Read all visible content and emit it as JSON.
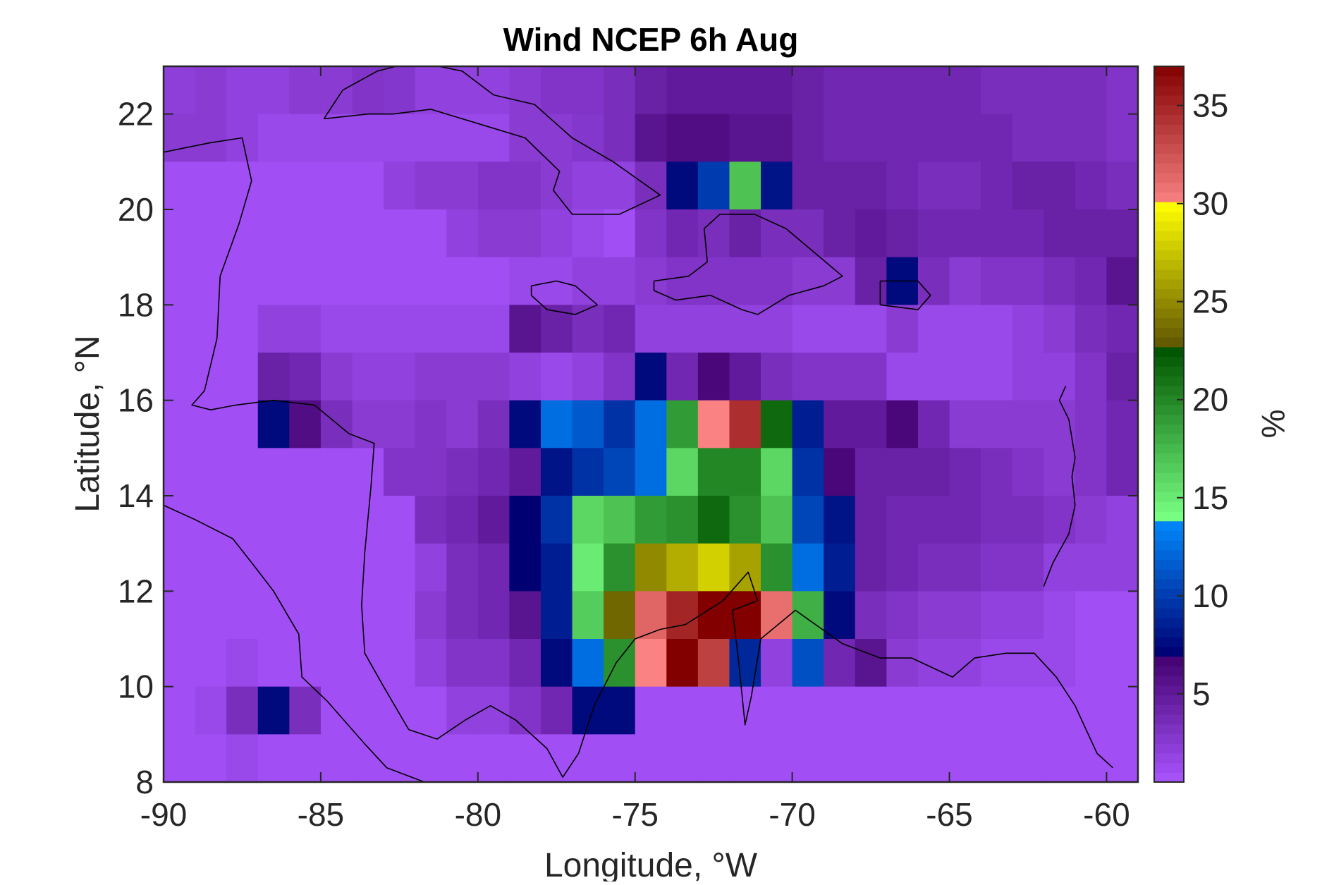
{
  "chart_data": {
    "type": "heatmap",
    "title": "Wind NCEP 6h Aug",
    "xlabel": "Longitude, °W",
    "ylabel": "Latitude, °N",
    "colorbar_label": "%",
    "xlim": [
      -90,
      -59
    ],
    "ylim": [
      8,
      23
    ],
    "xticks": [
      -90,
      -85,
      -80,
      -75,
      -70,
      -65,
      -60
    ],
    "yticks": [
      8,
      10,
      12,
      14,
      16,
      18,
      20,
      22
    ],
    "clim": [
      0.5,
      37
    ],
    "cticks": [
      5,
      10,
      15,
      20,
      25,
      30,
      35
    ],
    "grid": false,
    "colorbar_position": "right",
    "cell_size_deg": [
      2,
      1
    ],
    "x_origin": -90,
    "y_top": 23,
    "note_cells": "rows from north (23-22°N) to south (9-8°N); each row lists 31 column values from -90°W eastward; value unit %",
    "cells": [
      [
        2.2,
        2.5,
        2.0,
        2.0,
        2.5,
        2.5,
        3.0,
        2.8,
        2.0,
        2.0,
        2.0,
        2.5,
        3.0,
        3.0,
        3.5,
        4.5,
        5.0,
        5.0,
        5.0,
        5.0,
        4.5,
        4.0,
        4.0,
        4.0,
        4.0,
        4.0,
        3.5,
        3.5,
        3.5,
        3.5,
        3.0
      ],
      [
        2.5,
        2.5,
        2.0,
        1.5,
        1.5,
        1.5,
        1.5,
        1.5,
        1.5,
        1.5,
        1.5,
        2.5,
        2.5,
        2.8,
        3.5,
        5.5,
        6.0,
        6.0,
        5.5,
        5.5,
        4.5,
        4.0,
        4.0,
        4.0,
        4.0,
        4.0,
        4.0,
        3.5,
        3.5,
        3.5,
        3.0
      ],
      [
        1.0,
        1.0,
        1.0,
        1.0,
        1.0,
        1.0,
        1.0,
        2.0,
        2.5,
        2.5,
        3.0,
        3.0,
        2.5,
        2.0,
        2.0,
        3.5,
        7.5,
        10.0,
        17.0,
        8.0,
        4.5,
        4.5,
        4.5,
        4.0,
        3.5,
        3.5,
        4.0,
        4.5,
        4.5,
        4.0,
        3.5
      ],
      [
        1.0,
        1.0,
        1.0,
        1.0,
        1.0,
        1.0,
        1.0,
        1.0,
        1.0,
        2.0,
        2.5,
        2.5,
        2.0,
        1.5,
        1.0,
        3.0,
        4.0,
        3.5,
        4.5,
        3.5,
        3.5,
        4.5,
        5.0,
        4.5,
        4.0,
        4.0,
        4.0,
        4.0,
        4.5,
        4.5,
        4.5
      ],
      [
        1.0,
        1.0,
        1.0,
        1.0,
        1.0,
        1.0,
        1.0,
        1.0,
        1.0,
        1.0,
        1.0,
        1.5,
        1.5,
        2.0,
        2.0,
        2.5,
        3.0,
        3.0,
        3.0,
        3.0,
        2.5,
        2.5,
        4.5,
        7.5,
        3.5,
        2.5,
        3.0,
        3.0,
        3.5,
        4.0,
        5.5
      ],
      [
        1.0,
        1.0,
        1.0,
        2.0,
        2.0,
        1.5,
        1.5,
        1.5,
        1.5,
        1.5,
        1.5,
        5.5,
        4.5,
        3.5,
        4.0,
        2.0,
        2.0,
        2.0,
        2.0,
        2.0,
        1.5,
        1.5,
        1.5,
        2.5,
        1.5,
        1.5,
        1.5,
        2.0,
        2.5,
        3.5,
        4.0
      ],
      [
        1.0,
        1.0,
        1.0,
        4.5,
        4.0,
        2.5,
        2.0,
        2.0,
        2.5,
        2.5,
        2.5,
        2.0,
        1.5,
        2.0,
        3.0,
        7.5,
        4.0,
        6.5,
        5.0,
        3.5,
        3.0,
        3.0,
        3.0,
        1.5,
        1.5,
        1.5,
        1.5,
        2.0,
        2.0,
        3.0,
        4.5
      ],
      [
        1.0,
        1.0,
        1.0,
        7.5,
        6.0,
        3.5,
        2.5,
        2.5,
        3.0,
        2.5,
        3.5,
        7.5,
        12.5,
        11.5,
        9.5,
        12.5,
        19.0,
        30.0,
        34.5,
        21.5,
        8.5,
        5.0,
        5.0,
        6.5,
        4.0,
        2.5,
        2.5,
        2.5,
        2.5,
        3.0,
        4.0
      ],
      [
        1.0,
        1.0,
        1.0,
        1.0,
        1.0,
        1.0,
        1.0,
        3.0,
        3.0,
        3.5,
        4.0,
        5.0,
        8.0,
        9.5,
        10.5,
        12.5,
        16.0,
        20.0,
        20.0,
        16.0,
        9.5,
        6.5,
        4.5,
        4.5,
        4.5,
        4.0,
        3.5,
        3.0,
        2.5,
        3.0,
        4.0
      ],
      [
        1.0,
        1.0,
        1.0,
        1.0,
        1.0,
        1.0,
        1.0,
        1.0,
        3.5,
        4.0,
        5.0,
        7.0,
        9.5,
        16.0,
        17.0,
        19.0,
        19.5,
        21.5,
        19.5,
        17.0,
        10.5,
        8.0,
        4.5,
        4.0,
        4.0,
        4.0,
        3.5,
        3.5,
        3.0,
        2.5,
        2.0
      ],
      [
        1.0,
        1.0,
        1.0,
        1.0,
        1.0,
        1.0,
        1.0,
        1.0,
        2.0,
        3.5,
        4.0,
        7.0,
        8.5,
        15.0,
        19.5,
        25.0,
        26.5,
        28.0,
        26.0,
        19.5,
        12.5,
        8.5,
        4.5,
        4.0,
        3.5,
        3.5,
        3.0,
        3.0,
        2.0,
        2.0,
        2.0
      ],
      [
        1.0,
        1.0,
        1.0,
        1.0,
        1.0,
        1.0,
        1.0,
        1.0,
        2.5,
        3.5,
        4.0,
        5.5,
        8.5,
        16.5,
        23.5,
        31.5,
        35.0,
        37.0,
        37.0,
        31.0,
        18.0,
        7.5,
        3.5,
        3.0,
        2.5,
        2.5,
        2.0,
        2.0,
        1.5,
        1.0,
        1.0
      ],
      [
        1.0,
        1.0,
        1.5,
        1.0,
        1.0,
        1.0,
        1.0,
        1.0,
        2.0,
        3.0,
        3.0,
        4.0,
        7.5,
        12.5,
        19.5,
        30.0,
        37.0,
        33.5,
        9.0,
        2.0,
        11.0,
        4.0,
        5.5,
        2.5,
        2.0,
        2.0,
        1.5,
        1.5,
        1.5,
        1.0,
        1.0
      ],
      [
        1.0,
        1.5,
        3.5,
        7.5,
        3.5,
        1.0,
        1.0,
        1.0,
        1.0,
        2.0,
        2.0,
        3.0,
        4.0,
        7.5,
        7.5,
        1.0,
        1.0,
        1.0,
        1.0,
        1.0,
        1.0,
        1.0,
        1.0,
        1.0,
        1.0,
        1.0,
        1.0,
        1.0,
        1.0,
        1.0,
        1.0
      ],
      [
        1.0,
        1.0,
        1.5,
        1.0,
        1.0,
        1.0,
        1.0,
        1.0,
        1.0,
        1.0,
        1.0,
        1.0,
        1.0,
        1.0,
        1.0,
        1.0,
        1.0,
        1.0,
        1.0,
        1.0,
        1.0,
        1.0,
        1.0,
        1.0,
        1.0,
        1.0,
        1.0,
        1.0,
        1.0,
        1.0,
        1.0
      ]
    ]
  }
}
